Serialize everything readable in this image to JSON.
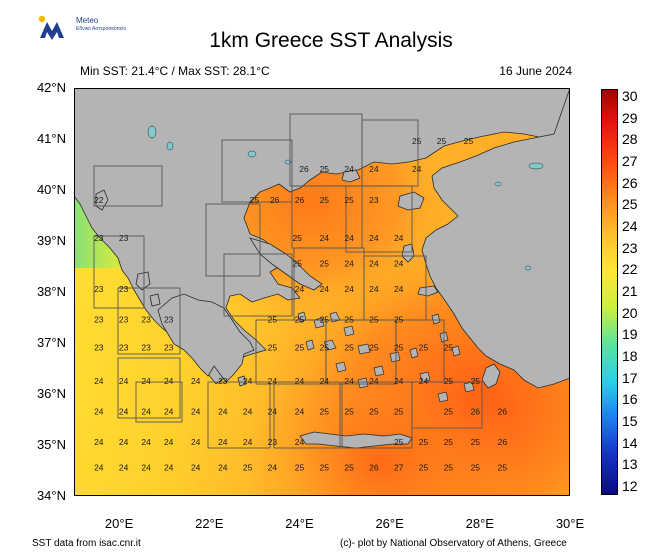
{
  "logo": {
    "name": "Meteo",
    "subtitle": "Εθνικό Αστεροσκοπείο",
    "icon": "meteo-logo-icon"
  },
  "title": "1km Greece SST Analysis",
  "stats": "Min SST: 21.4°C / Max SST: 28.1°C",
  "date": "16 June 2024",
  "lat_labels": [
    "42°N",
    "41°N",
    "40°N",
    "39°N",
    "38°N",
    "37°N",
    "36°N",
    "35°N",
    "34°N"
  ],
  "lon_labels": [
    "20°E",
    "22°E",
    "24°E",
    "26°E",
    "28°E",
    "30°E"
  ],
  "colorbar_labels": [
    "30",
    "29",
    "28",
    "27",
    "26",
    "25",
    "24",
    "23",
    "22",
    "21",
    "20",
    "19",
    "18",
    "17",
    "16",
    "15",
    "14",
    "13",
    "12"
  ],
  "footer_left": "SST data from isac.cnr.it",
  "footer_right": "(c)- plot by National Observatory of Athens, Greece",
  "colors": {
    "land": "#b4b4b4",
    "coast": "#2a2a2a",
    "lake": "#7fc9cf",
    "grid": "#555555"
  },
  "map": {
    "lon_range": [
      19,
      30
    ],
    "lat_range": [
      34,
      42
    ],
    "units": "°C",
    "sst_labels": [
      {
        "lon": 19.55,
        "lat": 39.75,
        "v": "22"
      },
      {
        "lon": 19.55,
        "lat": 39.0,
        "v": "23"
      },
      {
        "lon": 20.1,
        "lat": 39.0,
        "v": "23"
      },
      {
        "lon": 19.55,
        "lat": 38.0,
        "v": "23"
      },
      {
        "lon": 20.1,
        "lat": 38.0,
        "v": "23"
      },
      {
        "lon": 19.55,
        "lat": 37.4,
        "v": "23"
      },
      {
        "lon": 20.1,
        "lat": 37.4,
        "v": "23"
      },
      {
        "lon": 20.6,
        "lat": 37.4,
        "v": "23"
      },
      {
        "lon": 21.1,
        "lat": 37.4,
        "v": "23"
      },
      {
        "lon": 19.55,
        "lat": 36.85,
        "v": "23"
      },
      {
        "lon": 20.1,
        "lat": 36.85,
        "v": "23"
      },
      {
        "lon": 20.6,
        "lat": 36.85,
        "v": "23"
      },
      {
        "lon": 21.1,
        "lat": 36.85,
        "v": "23"
      },
      {
        "lon": 19.55,
        "lat": 36.2,
        "v": "24"
      },
      {
        "lon": 20.1,
        "lat": 36.2,
        "v": "24"
      },
      {
        "lon": 20.6,
        "lat": 36.2,
        "v": "24"
      },
      {
        "lon": 21.1,
        "lat": 36.2,
        "v": "24"
      },
      {
        "lon": 21.7,
        "lat": 36.2,
        "v": "24"
      },
      {
        "lon": 22.3,
        "lat": 36.2,
        "v": "23"
      },
      {
        "lon": 22.85,
        "lat": 36.2,
        "v": "24"
      },
      {
        "lon": 19.55,
        "lat": 35.6,
        "v": "24"
      },
      {
        "lon": 20.1,
        "lat": 35.6,
        "v": "24"
      },
      {
        "lon": 20.6,
        "lat": 35.6,
        "v": "24"
      },
      {
        "lon": 21.1,
        "lat": 35.6,
        "v": "24"
      },
      {
        "lon": 21.7,
        "lat": 35.6,
        "v": "24"
      },
      {
        "lon": 22.3,
        "lat": 35.6,
        "v": "24"
      },
      {
        "lon": 22.85,
        "lat": 35.6,
        "v": "24"
      },
      {
        "lon": 23.4,
        "lat": 35.6,
        "v": "24"
      },
      {
        "lon": 19.55,
        "lat": 35.0,
        "v": "24"
      },
      {
        "lon": 20.1,
        "lat": 35.0,
        "v": "24"
      },
      {
        "lon": 20.6,
        "lat": 35.0,
        "v": "24"
      },
      {
        "lon": 21.1,
        "lat": 35.0,
        "v": "24"
      },
      {
        "lon": 21.7,
        "lat": 35.0,
        "v": "24"
      },
      {
        "lon": 22.3,
        "lat": 35.0,
        "v": "24"
      },
      {
        "lon": 22.85,
        "lat": 35.0,
        "v": "24"
      },
      {
        "lon": 23.4,
        "lat": 35.0,
        "v": "23"
      },
      {
        "lon": 19.55,
        "lat": 34.5,
        "v": "24"
      },
      {
        "lon": 20.1,
        "lat": 34.5,
        "v": "24"
      },
      {
        "lon": 20.6,
        "lat": 34.5,
        "v": "24"
      },
      {
        "lon": 21.1,
        "lat": 34.5,
        "v": "24"
      },
      {
        "lon": 21.7,
        "lat": 34.5,
        "v": "24"
      },
      {
        "lon": 22.3,
        "lat": 34.5,
        "v": "24"
      },
      {
        "lon": 22.85,
        "lat": 34.5,
        "v": "25"
      },
      {
        "lon": 23.4,
        "lat": 34.5,
        "v": "24"
      },
      {
        "lon": 24.0,
        "lat": 34.5,
        "v": "25"
      },
      {
        "lon": 24.55,
        "lat": 34.5,
        "v": "25"
      },
      {
        "lon": 25.1,
        "lat": 34.5,
        "v": "25"
      },
      {
        "lon": 25.65,
        "lat": 34.5,
        "v": "26"
      },
      {
        "lon": 26.2,
        "lat": 34.5,
        "v": "27"
      },
      {
        "lon": 26.75,
        "lat": 34.5,
        "v": "25"
      },
      {
        "lon": 27.3,
        "lat": 34.5,
        "v": "25"
      },
      {
        "lon": 27.9,
        "lat": 34.5,
        "v": "25"
      },
      {
        "lon": 28.5,
        "lat": 34.5,
        "v": "25"
      },
      {
        "lon": 24.0,
        "lat": 35.6,
        "v": "24"
      },
      {
        "lon": 24.55,
        "lat": 35.6,
        "v": "25"
      },
      {
        "lon": 25.1,
        "lat": 35.6,
        "v": "25"
      },
      {
        "lon": 25.65,
        "lat": 35.6,
        "v": "25"
      },
      {
        "lon": 26.2,
        "lat": 35.6,
        "v": "25"
      },
      {
        "lon": 27.3,
        "lat": 35.6,
        "v": "25"
      },
      {
        "lon": 27.9,
        "lat": 35.6,
        "v": "26"
      },
      {
        "lon": 28.5,
        "lat": 35.6,
        "v": "26"
      },
      {
        "lon": 24.0,
        "lat": 35.0,
        "v": "24"
      },
      {
        "lon": 26.2,
        "lat": 35.0,
        "v": "25"
      },
      {
        "lon": 26.75,
        "lat": 35.0,
        "v": "25"
      },
      {
        "lon": 27.3,
        "lat": 35.0,
        "v": "25"
      },
      {
        "lon": 27.9,
        "lat": 35.0,
        "v": "25"
      },
      {
        "lon": 28.5,
        "lat": 35.0,
        "v": "26"
      },
      {
        "lon": 23.4,
        "lat": 36.2,
        "v": "24"
      },
      {
        "lon": 24.0,
        "lat": 36.2,
        "v": "24"
      },
      {
        "lon": 24.55,
        "lat": 36.2,
        "v": "24"
      },
      {
        "lon": 25.1,
        "lat": 36.2,
        "v": "24"
      },
      {
        "lon": 25.65,
        "lat": 36.2,
        "v": "24"
      },
      {
        "lon": 26.2,
        "lat": 36.2,
        "v": "24"
      },
      {
        "lon": 26.75,
        "lat": 36.2,
        "v": "24"
      },
      {
        "lon": 27.3,
        "lat": 36.2,
        "v": "25"
      },
      {
        "lon": 27.9,
        "lat": 36.2,
        "v": "25"
      },
      {
        "lon": 23.4,
        "lat": 36.85,
        "v": "25"
      },
      {
        "lon": 24.0,
        "lat": 36.85,
        "v": "25"
      },
      {
        "lon": 24.55,
        "lat": 36.85,
        "v": "25"
      },
      {
        "lon": 25.1,
        "lat": 36.85,
        "v": "25"
      },
      {
        "lon": 25.65,
        "lat": 36.85,
        "v": "25"
      },
      {
        "lon": 26.2,
        "lat": 36.85,
        "v": "25"
      },
      {
        "lon": 26.75,
        "lat": 36.85,
        "v": "25"
      },
      {
        "lon": 27.3,
        "lat": 36.85,
        "v": "25"
      },
      {
        "lon": 24.0,
        "lat": 38.0,
        "v": "24"
      },
      {
        "lon": 24.55,
        "lat": 38.0,
        "v": "24"
      },
      {
        "lon": 25.1,
        "lat": 38.0,
        "v": "24"
      },
      {
        "lon": 25.65,
        "lat": 38.0,
        "v": "24"
      },
      {
        "lon": 26.2,
        "lat": 38.0,
        "v": "24"
      },
      {
        "lon": 24.0,
        "lat": 37.4,
        "v": "25"
      },
      {
        "lon": 24.55,
        "lat": 37.4,
        "v": "25"
      },
      {
        "lon": 25.1,
        "lat": 37.4,
        "v": "25"
      },
      {
        "lon": 25.65,
        "lat": 37.4,
        "v": "25"
      },
      {
        "lon": 26.2,
        "lat": 37.4,
        "v": "25"
      },
      {
        "lon": 23.4,
        "lat": 37.4,
        "v": "25"
      },
      {
        "lon": 23.95,
        "lat": 39.0,
        "v": "25"
      },
      {
        "lon": 24.55,
        "lat": 39.0,
        "v": "24"
      },
      {
        "lon": 25.1,
        "lat": 39.0,
        "v": "24"
      },
      {
        "lon": 25.65,
        "lat": 39.0,
        "v": "24"
      },
      {
        "lon": 26.2,
        "lat": 39.0,
        "v": "24"
      },
      {
        "lon": 23.95,
        "lat": 38.5,
        "v": "25"
      },
      {
        "lon": 24.55,
        "lat": 38.5,
        "v": "25"
      },
      {
        "lon": 25.1,
        "lat": 38.5,
        "v": "24"
      },
      {
        "lon": 25.65,
        "lat": 38.5,
        "v": "24"
      },
      {
        "lon": 26.2,
        "lat": 38.5,
        "v": "24"
      },
      {
        "lon": 23.0,
        "lat": 39.75,
        "v": "25"
      },
      {
        "lon": 23.45,
        "lat": 39.75,
        "v": "26"
      },
      {
        "lon": 24.0,
        "lat": 39.75,
        "v": "26"
      },
      {
        "lon": 24.55,
        "lat": 39.75,
        "v": "25"
      },
      {
        "lon": 25.1,
        "lat": 39.75,
        "v": "25"
      },
      {
        "lon": 25.65,
        "lat": 39.75,
        "v": "23"
      },
      {
        "lon": 24.1,
        "lat": 40.35,
        "v": "26"
      },
      {
        "lon": 24.55,
        "lat": 40.35,
        "v": "25"
      },
      {
        "lon": 25.1,
        "lat": 40.35,
        "v": "24"
      },
      {
        "lon": 25.65,
        "lat": 40.35,
        "v": "24"
      },
      {
        "lon": 26.6,
        "lat": 40.35,
        "v": "24"
      },
      {
        "lon": 26.6,
        "lat": 40.9,
        "v": "25"
      },
      {
        "lon": 27.15,
        "lat": 40.9,
        "v": "25"
      },
      {
        "lon": 27.75,
        "lat": 40.9,
        "v": "25"
      }
    ]
  }
}
